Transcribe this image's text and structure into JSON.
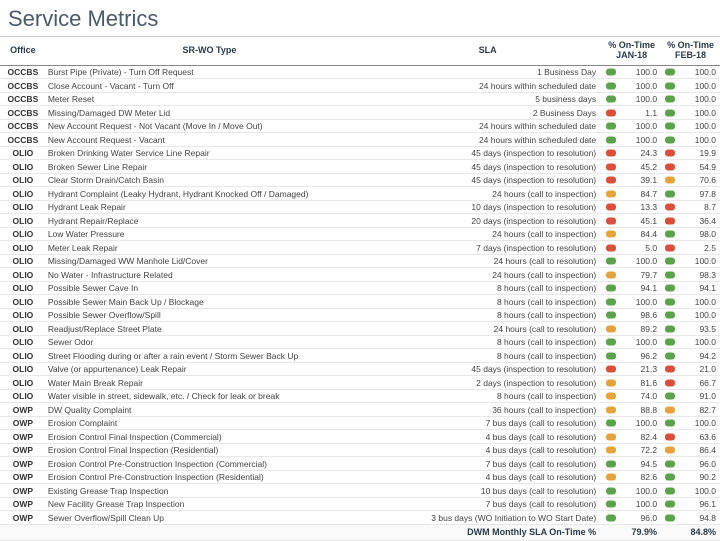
{
  "title": "Service Metrics",
  "columns": {
    "office": "Office",
    "srwo": "SR-WO Type",
    "sla": "SLA",
    "jan": "% On-Time JAN-18",
    "feb": "% On-Time FEB-18"
  },
  "colors": {
    "good": "#5aa34a",
    "warn": "#e6a23c",
    "bad": "#d94f3a"
  },
  "thresholds": {
    "good": 90,
    "warn": 70
  },
  "rows": [
    {
      "office": "OCCBS",
      "srwo": "Burst Pipe (Private) - Turn Off Request",
      "sla": "1 Business Day",
      "jan": "100.0",
      "feb": "100.0"
    },
    {
      "office": "OCCBS",
      "srwo": "Close Account - Vacant - Turn Off",
      "sla": "24 hours within scheduled date",
      "jan": "100.0",
      "feb": "100.0"
    },
    {
      "office": "OCCBS",
      "srwo": "Meter Reset",
      "sla": "5 business days",
      "jan": "100.0",
      "feb": "100.0"
    },
    {
      "office": "OCCBS",
      "srwo": "Missing/Damaged DW Meter Lid",
      "sla": "2 Business Days",
      "jan": "1.1",
      "feb": "100.0"
    },
    {
      "office": "OCCBS",
      "srwo": "New Account Request - Not Vacant (Move In / Move Out)",
      "sla": "24 hours within scheduled date",
      "jan": "100.0",
      "feb": "100.0"
    },
    {
      "office": "OCCBS",
      "srwo": "New Account Request - Vacant",
      "sla": "24 hours within scheduled date",
      "jan": "100.0",
      "feb": "100.0"
    },
    {
      "office": "OLIO",
      "srwo": "Broken Drinking Water Service Line Repair",
      "sla": "45 days (inspection to resolution)",
      "jan": "24.3",
      "feb": "19.9"
    },
    {
      "office": "OLIO",
      "srwo": "Broken Sewer Line Repair",
      "sla": "45 days (inspection to resolution)",
      "jan": "45.2",
      "feb": "54.9"
    },
    {
      "office": "OLIO",
      "srwo": "Clear Storm Drain/Catch Basin",
      "sla": "45 days (inspection to resolution)",
      "jan": "39.1",
      "feb": "70.6"
    },
    {
      "office": "OLIO",
      "srwo": "Hydrant Complaint (Leaky Hydrant, Hydrant Knocked Off / Damaged)",
      "sla": "24 hours (call to inspection)",
      "jan": "84.7",
      "feb": "97.8"
    },
    {
      "office": "OLIO",
      "srwo": "Hydrant Leak Repair",
      "sla": "10 days (inspection to resolution)",
      "jan": "13.3",
      "feb": "8.7"
    },
    {
      "office": "OLIO",
      "srwo": "Hydrant Repair/Replace",
      "sla": "20 days (inspection to resolution)",
      "jan": "45.1",
      "feb": "36.4"
    },
    {
      "office": "OLIO",
      "srwo": "Low Water Pressure",
      "sla": "24 hours (call to inspection)",
      "jan": "84.4",
      "feb": "98.0"
    },
    {
      "office": "OLIO",
      "srwo": "Meter Leak Repair",
      "sla": "7 days (inspection to resolution)",
      "jan": "5.0",
      "feb": "2.5"
    },
    {
      "office": "OLIO",
      "srwo": "Missing/Damaged WW Manhole Lid/Cover",
      "sla": "24 hours (call to resolution)",
      "jan": "100.0",
      "feb": "100.0"
    },
    {
      "office": "OLIO",
      "srwo": "No Water - Infrastructure Related",
      "sla": "24 hours (call to inspection)",
      "jan": "79.7",
      "feb": "98.3"
    },
    {
      "office": "OLIO",
      "srwo": "Possible Sewer Cave In",
      "sla": "8 hours (call to inspection)",
      "jan": "94.1",
      "feb": "94.1"
    },
    {
      "office": "OLIO",
      "srwo": "Possible Sewer Main Back Up / Blockage",
      "sla": "8 hours (call to inspection)",
      "jan": "100.0",
      "feb": "100.0"
    },
    {
      "office": "OLIO",
      "srwo": "Possible Sewer Overflow/Spill",
      "sla": "8 hours (call to inspection)",
      "jan": "98.6",
      "feb": "100.0"
    },
    {
      "office": "OLIO",
      "srwo": "Readjust/Replace Street Plate",
      "sla": "24 hours (call to resolution)",
      "jan": "89.2",
      "feb": "93.5"
    },
    {
      "office": "OLIO",
      "srwo": "Sewer Odor",
      "sla": "8 hours (call to inspection)",
      "jan": "100.0",
      "feb": "100.0"
    },
    {
      "office": "OLIO",
      "srwo": "Street Flooding during or after a rain event / Storm Sewer Back Up",
      "sla": "8 hours (call to inspection)",
      "jan": "96.2",
      "feb": "94.2"
    },
    {
      "office": "OLIO",
      "srwo": "Valve (or appurtenance) Leak Repair",
      "sla": "45 days (inspection to resolution)",
      "jan": "21.3",
      "feb": "21.0"
    },
    {
      "office": "OLIO",
      "srwo": "Water Main Break Repair",
      "sla": "2 days (inspection to resolution)",
      "jan": "81.6",
      "feb": "66.7"
    },
    {
      "office": "OLIO",
      "srwo": "Water visible in street, sidewalk, etc. / Check for leak or break",
      "sla": "8 hours (call to inspection)",
      "jan": "74.0",
      "feb": "91.0"
    },
    {
      "office": "OWP",
      "srwo": "DW Quality Complaint",
      "sla": "36 hours (call to inspection)",
      "jan": "88.8",
      "feb": "82.7"
    },
    {
      "office": "OWP",
      "srwo": "Erosion Complaint",
      "sla": "7 bus days (call to resolution)",
      "jan": "100.0",
      "feb": "100.0"
    },
    {
      "office": "OWP",
      "srwo": "Erosion Control Final Inspection (Commercial)",
      "sla": "4 bus days (call to resolution)",
      "jan": "82.4",
      "feb": "63.6"
    },
    {
      "office": "OWP",
      "srwo": "Erosion Control Final Inspection (Residential)",
      "sla": "4 bus days (call to resolution)",
      "jan": "72.2",
      "feb": "86.4"
    },
    {
      "office": "OWP",
      "srwo": "Erosion Control Pre-Construction Inspection (Commercial)",
      "sla": "7 bus days (call to resolution)",
      "jan": "94.5",
      "feb": "96.0"
    },
    {
      "office": "OWP",
      "srwo": "Erosion Control Pre-Construction Inspection (Residential)",
      "sla": "4 bus days (call to resolution)",
      "jan": "82.6",
      "feb": "90.2"
    },
    {
      "office": "OWP",
      "srwo": "Existing Grease Trap Inspection",
      "sla": "10 bus days (call to resolution)",
      "jan": "100.0",
      "feb": "100.0"
    },
    {
      "office": "OWP",
      "srwo": "New Facility Grease Trap Inspection",
      "sla": "7 bus days (call to resolution)",
      "jan": "100.0",
      "feb": "96.1"
    },
    {
      "office": "OWP",
      "srwo": "Sewer Overflow/Spill Clean Up",
      "sla": "3 bus days (WO Initiation to WO Start Date)",
      "jan": "96.0",
      "feb": "94.8"
    }
  ],
  "summary": {
    "label": "DWM Monthly SLA On-Time %",
    "jan": "79.9%",
    "feb": "84.8%"
  }
}
